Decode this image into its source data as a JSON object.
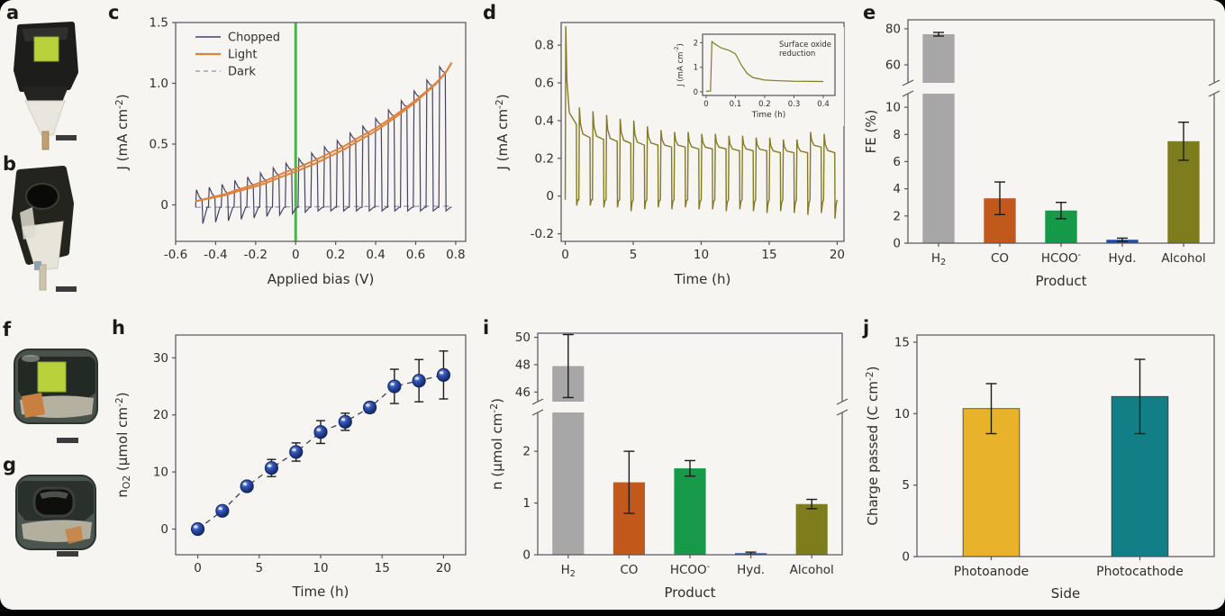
{
  "figure": {
    "panel_labels": {
      "a": "a",
      "b": "b",
      "c": "c",
      "d": "d",
      "e": "e",
      "f": "f",
      "g": "g",
      "h": "h",
      "i": "i",
      "j": "j"
    }
  },
  "chart_data": [
    {
      "id": "c",
      "type": "line",
      "xlabel": "Applied bias (V)",
      "ylabel": "J (mA cm^{-2})",
      "xlim": [
        -0.6,
        0.85
      ],
      "ylim": [
        -0.3,
        1.5
      ],
      "xtick_vals": [
        -0.6,
        -0.4,
        -0.2,
        0,
        0.2,
        0.4,
        0.6,
        0.8
      ],
      "xtick_labels": [
        "-0.6",
        "-0.4",
        "-0.2",
        "0",
        "0.2",
        "0.4",
        "0.6",
        "0.8"
      ],
      "ytick_vals": [
        0,
        0.5,
        1,
        1.5
      ],
      "ytick_labels": [
        "0",
        "0.5",
        "1.0",
        "1.5"
      ],
      "legend": [
        {
          "label": "Chopped",
          "color": "#454364",
          "dash": ""
        },
        {
          "label": "Light",
          "color": "#e2813c",
          "dash": ""
        },
        {
          "label": "Dark",
          "color": "#a0a0b8",
          "dash": "5 4"
        }
      ],
      "vline": {
        "x": 0,
        "color": "#44b944"
      },
      "grid": false,
      "light": {
        "x": [
          -0.5,
          -0.45,
          -0.4,
          -0.35,
          -0.3,
          -0.25,
          -0.2,
          -0.15,
          -0.1,
          -0.05,
          0,
          0.05,
          0.1,
          0.15,
          0.2,
          0.25,
          0.3,
          0.35,
          0.4,
          0.45,
          0.5,
          0.55,
          0.6,
          0.65,
          0.7,
          0.75,
          0.78
        ],
        "y": [
          0.03,
          0.05,
          0.07,
          0.09,
          0.12,
          0.145,
          0.17,
          0.2,
          0.235,
          0.27,
          0.3,
          0.335,
          0.37,
          0.41,
          0.45,
          0.49,
          0.54,
          0.585,
          0.63,
          0.685,
          0.74,
          0.8,
          0.86,
          0.93,
          1.0,
          1.09,
          1.17
        ]
      },
      "dark": {
        "x": [
          -0.5,
          0.78
        ],
        "y": [
          -0.02,
          -0.01
        ]
      },
      "chop": {
        "start": -0.5,
        "end": 0.78,
        "cycles": 20
      }
    },
    {
      "id": "d",
      "type": "chrono",
      "xlabel": "Time (h)",
      "ylabel": "J (mA cm^{-2})",
      "xlim": [
        -0.3,
        20.5
      ],
      "ylim": [
        -0.24,
        0.92
      ],
      "xtick_vals": [
        0,
        5,
        10,
        15,
        20
      ],
      "xtick_labels": [
        "0",
        "5",
        "10",
        "15",
        "20"
      ],
      "ytick_vals": [
        -0.2,
        0,
        0.2,
        0.4,
        0.6,
        0.8
      ],
      "ytick_labels": [
        "-0.2",
        "0",
        "0.2",
        "0.4",
        "0.6",
        "0.8"
      ],
      "color": "#847a26",
      "peaks": [
        0.9,
        0.47,
        0.45,
        0.43,
        0.41,
        0.4,
        0.37,
        0.35,
        0.34,
        0.34,
        0.33,
        0.33,
        0.32,
        0.32,
        0.31,
        0.31,
        0.3,
        0.3,
        0.34,
        0.33
      ],
      "plateaus": [
        0.38,
        0.31,
        0.3,
        0.29,
        0.28,
        0.27,
        0.27,
        0.26,
        0.26,
        0.25,
        0.25,
        0.25,
        0.24,
        0.24,
        0.24,
        0.23,
        0.23,
        0.23,
        0.26,
        0.23
      ],
      "dips": [
        -0.05,
        -0.05,
        -0.06,
        -0.06,
        -0.08,
        -0.07,
        -0.06,
        -0.07,
        -0.06,
        -0.07,
        -0.07,
        -0.08,
        -0.07,
        -0.08,
        -0.09,
        -0.08,
        -0.09,
        -0.1,
        -0.09,
        -0.12
      ],
      "inset": {
        "note_line1": "Surface oxide",
        "note_line2": "reduction",
        "xlabel": "Time (h)",
        "ylabel": "J (mA cm^{-2})",
        "xlim": [
          -0.012,
          0.44
        ],
        "ylim": [
          -0.15,
          2.35
        ],
        "xtick_vals": [
          0,
          0.1,
          0.2,
          0.3,
          0.4
        ],
        "xtick_labels": [
          "0",
          "0.1",
          "0.2",
          "0.3",
          "0.4"
        ],
        "ytick_vals": [
          0,
          1,
          2
        ],
        "ytick_labels": [
          "0",
          "1",
          "2"
        ],
        "x": [
          0,
          0.015,
          0.02,
          0.03,
          0.05,
          0.08,
          0.1,
          0.12,
          0.14,
          0.16,
          0.2,
          0.25,
          0.3,
          0.4
        ],
        "y": [
          0.02,
          0.03,
          2.05,
          1.95,
          1.8,
          1.68,
          1.55,
          1.1,
          0.75,
          0.58,
          0.48,
          0.45,
          0.43,
          0.42
        ]
      }
    },
    {
      "id": "e",
      "type": "bar-broken",
      "xlabel": "Product",
      "ylabel": "FE (%)",
      "categories": [
        "H_{2}",
        "CO",
        "HCOO^{-}",
        "Hyd.",
        "Alcohol"
      ],
      "values": [
        77,
        3.3,
        2.4,
        0.25,
        7.5
      ],
      "errors": [
        1.0,
        1.2,
        0.6,
        0.12,
        1.4
      ],
      "colors": [
        "#a7a7a7",
        "#c1591c",
        "#169a49",
        "#1d4ea5",
        "#7d7d1d"
      ],
      "upper": {
        "range": [
          50,
          85
        ],
        "tick_vals": [
          60,
          80
        ],
        "tick_labels": [
          "60",
          "80"
        ]
      },
      "lower": {
        "range": [
          0,
          11
        ],
        "tick_vals": [
          0,
          2,
          4,
          6,
          8,
          10
        ],
        "tick_labels": [
          "0",
          "2",
          "4",
          "6",
          "8",
          "10"
        ]
      }
    },
    {
      "id": "h",
      "type": "scatter",
      "xlabel": "Time (h)",
      "ylabel": "n_{O2} (µmol cm^{-2})",
      "xlim": [
        -1.8,
        21.8
      ],
      "ylim": [
        -4.5,
        34
      ],
      "xtick_vals": [
        0,
        5,
        10,
        15,
        20
      ],
      "xtick_labels": [
        "0",
        "5",
        "10",
        "15",
        "20"
      ],
      "ytick_vals": [
        0,
        10,
        20,
        30
      ],
      "ytick_labels": [
        "0",
        "10",
        "20",
        "30"
      ],
      "marker_color": "#2b4db0",
      "marker_edge": "#152a66",
      "line_color": "#3b3b55",
      "x": [
        0,
        2,
        4,
        6,
        8,
        10,
        12,
        14,
        16,
        18,
        20
      ],
      "y": [
        0,
        3.2,
        7.5,
        10.7,
        13.5,
        17,
        18.8,
        21.3,
        25,
        26,
        27
      ],
      "yerr": [
        0.3,
        0.8,
        0.8,
        1.5,
        1.6,
        2.0,
        1.5,
        0.9,
        3.0,
        3.7,
        4.2
      ]
    },
    {
      "id": "i",
      "type": "bar-broken",
      "xlabel": "Product",
      "ylabel": "n (µmol cm^{-2})",
      "categories": [
        "H_{2}",
        "CO",
        "HCOO^{-}",
        "Hyd.",
        "Alcohol"
      ],
      "values": [
        47.9,
        1.4,
        1.67,
        0.03,
        0.98
      ],
      "errors": [
        2.3,
        0.6,
        0.15,
        0.02,
        0.09
      ],
      "colors": [
        "#a7a7a7",
        "#c1591c",
        "#169a49",
        "#1d4ea5",
        "#7d7d1d"
      ],
      "upper": {
        "range": [
          45.3,
          50.3
        ],
        "tick_vals": [
          46,
          48,
          50
        ],
        "tick_labels": [
          "46",
          "48",
          "50"
        ]
      },
      "lower": {
        "range": [
          0,
          2.75
        ],
        "tick_vals": [
          0,
          1,
          2
        ],
        "tick_labels": [
          "0",
          "1",
          "2"
        ]
      }
    },
    {
      "id": "j",
      "type": "bar",
      "xlabel": "Side",
      "ylabel": "Charge passed (C cm^{-2})",
      "categories": [
        "Photoanode",
        "Photocathode"
      ],
      "values": [
        10.35,
        11.2
      ],
      "errors": [
        1.75,
        2.6
      ],
      "colors": [
        "#e8b22b",
        "#127f86"
      ],
      "ylim": [
        0,
        15.5
      ],
      "ytick_vals": [
        0,
        5,
        10,
        15
      ],
      "ytick_labels": [
        "0",
        "5",
        "10",
        "15"
      ]
    }
  ]
}
